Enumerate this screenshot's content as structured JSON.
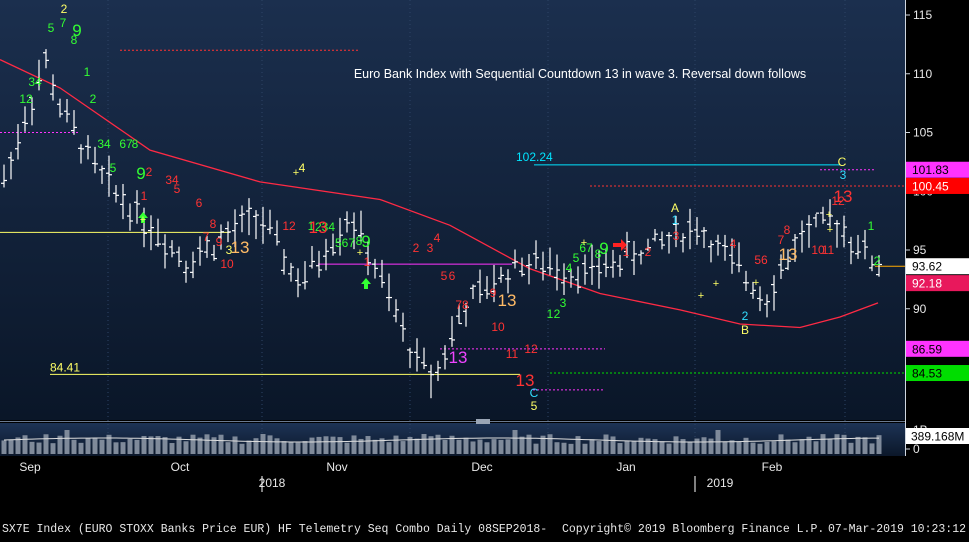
{
  "chart_data": {
    "type": "candlestick",
    "annotation": "Euro Bank Index with Sequential Countdown 13 in wave 3. Reversal down follows",
    "months": [
      "Sep",
      "Oct",
      "Nov",
      "Dec",
      "Jan",
      "Feb"
    ],
    "years": [
      "2018",
      "2019"
    ],
    "price_axis": {
      "ticks": [
        90,
        95,
        100,
        105,
        110,
        115
      ],
      "range": [
        83,
        116
      ]
    },
    "volume_axis": {
      "ticks": [
        "1B",
        "0"
      ]
    },
    "price_tags": [
      {
        "label": "101.83",
        "value": 101.83,
        "color": "#ff33ff",
        "text_color": "#000000"
      },
      {
        "label": "100.45",
        "value": 100.45,
        "color": "#ff0000",
        "text_color": "#ffffff"
      },
      {
        "label": "93.62",
        "value": 93.62,
        "color": "#ffffff",
        "text_color": "#000000"
      },
      {
        "label": "92.18",
        "value": 92.18,
        "color": "#e8185c",
        "text_color": "#ffffff"
      },
      {
        "label": "86.59",
        "value": 86.59,
        "color": "#ff33ff",
        "text_color": "#000000"
      },
      {
        "label": "84.53",
        "value": 84.53,
        "color": "#00dd00",
        "text_color": "#000000"
      }
    ],
    "volume_tag": {
      "label": "389.168M",
      "color": "#ffffff",
      "text_color": "#000000"
    },
    "level_labels": [
      {
        "label": "84.41",
        "value": 84.41,
        "color": "#ffff66"
      },
      {
        "label": "102.24",
        "value": 102.24,
        "color": "#00e5ff"
      }
    ],
    "footer": {
      "left": "SX7E Index (EURO STOXX Banks Price EUR) HF Telemetry Seq Combo  Daily 08SEP2018-",
      "center": "Copyright© 2019 Bloomberg Finance L.P.",
      "right": "07-Mar-2019 10:23:12"
    },
    "colors": {
      "background_top": "#1b2f4e",
      "background_bottom": "#0a1628",
      "bars": "#ffffff",
      "moving_average": "#ff2a44",
      "setup_count": "#33ff33",
      "countdown": "#ff2b2b",
      "wave_label": "#ffff66",
      "wave_label_alt": "#33ddff"
    },
    "sequential_labels": [
      {
        "text": "2",
        "color": "#ffff66"
      },
      {
        "text": "7",
        "color": "#33ff33"
      },
      {
        "text": "9",
        "color": "#33ff33"
      },
      {
        "text": "5",
        "color": "#33ff33"
      },
      {
        "text": "8",
        "color": "#33ff33"
      },
      {
        "text": "1",
        "color": "#33ff33"
      },
      {
        "text": "34",
        "color": "#33ff33"
      },
      {
        "text": "12",
        "color": "#33ff33"
      },
      {
        "text": "2",
        "color": "#33ff33"
      },
      {
        "text": "34",
        "color": "#33ff33"
      },
      {
        "text": "67",
        "color": "#33ff33"
      },
      {
        "text": "8",
        "color": "#33ff33"
      },
      {
        "text": "5",
        "color": "#33ff33"
      },
      {
        "text": "9",
        "color": "#33ff33"
      },
      {
        "text": "2",
        "color": "#ff3333"
      },
      {
        "text": "1",
        "color": "#ff3333"
      },
      {
        "text": "34",
        "color": "#ff3333"
      },
      {
        "text": "5",
        "color": "#ff3333"
      },
      {
        "text": "6",
        "color": "#ff3333"
      },
      {
        "text": "7",
        "color": "#ff3333"
      },
      {
        "text": "8",
        "color": "#ff3333"
      },
      {
        "text": "9",
        "color": "#ff3333"
      },
      {
        "text": "10",
        "color": "#ff3333"
      },
      {
        "text": "13",
        "color": "#ffbb66"
      },
      {
        "text": "3",
        "color": "#ffff66"
      },
      {
        "text": "4",
        "color": "#ffff66"
      },
      {
        "text": "12",
        "color": "#ff3333"
      },
      {
        "text": "1",
        "color": "#33ff33"
      },
      {
        "text": "234",
        "color": "#33ff33"
      },
      {
        "text": "567",
        "color": "#33ff33"
      },
      {
        "text": "13",
        "color": "#ff3333"
      },
      {
        "text": "8",
        "color": "#33ff33"
      },
      {
        "text": "9",
        "color": "#33ff33"
      },
      {
        "text": "1",
        "color": "#ff3333"
      },
      {
        "text": "2",
        "color": "#ff3333"
      },
      {
        "text": "3",
        "color": "#ff3333"
      },
      {
        "text": "4",
        "color": "#ff3333"
      },
      {
        "text": "5",
        "color": "#ff3333"
      },
      {
        "text": "6",
        "color": "#ff3333"
      },
      {
        "text": "78",
        "color": "#ff3333"
      },
      {
        "text": "9",
        "color": "#ff3333"
      },
      {
        "text": "10",
        "color": "#ff3333"
      },
      {
        "text": "13",
        "color": "#ffbb66"
      },
      {
        "text": "13",
        "color": "#ee44ff"
      },
      {
        "text": "11",
        "color": "#ff3333"
      },
      {
        "text": "12",
        "color": "#ff3333"
      },
      {
        "text": "13",
        "color": "#ff3333"
      },
      {
        "text": "C",
        "color": "#33ddff"
      },
      {
        "text": "5",
        "color": "#ffff66"
      },
      {
        "text": "1",
        "color": "#33ff33"
      },
      {
        "text": "2",
        "color": "#33ff33"
      },
      {
        "text": "3",
        "color": "#33ff33"
      },
      {
        "text": "4",
        "color": "#33ff33"
      },
      {
        "text": "5",
        "color": "#33ff33"
      },
      {
        "text": "67",
        "color": "#33ff33"
      },
      {
        "text": "8",
        "color": "#33ff33"
      },
      {
        "text": "9",
        "color": "#33ff33"
      },
      {
        "text": "1",
        "color": "#ff3333"
      },
      {
        "text": "2",
        "color": "#ff3333"
      },
      {
        "text": "3",
        "color": "#ff3333"
      },
      {
        "text": "A",
        "color": "#ffff66"
      },
      {
        "text": "1",
        "color": "#33ddff"
      },
      {
        "text": "4",
        "color": "#ff3333"
      },
      {
        "text": "56",
        "color": "#ff3333"
      },
      {
        "text": "2",
        "color": "#33ddff"
      },
      {
        "text": "B",
        "color": "#ffff66"
      },
      {
        "text": "7",
        "color": "#ff3333"
      },
      {
        "text": "8",
        "color": "#ff3333"
      },
      {
        "text": "13",
        "color": "#ffbb66"
      },
      {
        "text": "10",
        "color": "#ff3333"
      },
      {
        "text": "11",
        "color": "#ff3333"
      },
      {
        "text": "12",
        "color": "#ff3333"
      },
      {
        "text": "13",
        "color": "#ff3333"
      },
      {
        "text": "C",
        "color": "#ffff66"
      },
      {
        "text": "3",
        "color": "#33ddff"
      },
      {
        "text": "1",
        "color": "#33ff33"
      },
      {
        "text": "2",
        "color": "#33ff33"
      }
    ]
  }
}
